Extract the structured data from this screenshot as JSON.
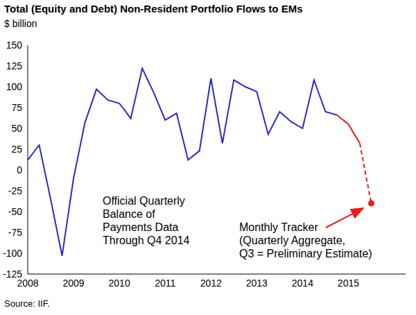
{
  "chart_data": {
    "type": "line",
    "title": "Total (Equity and Debt) Non-Resident Portfolio Flows to EMs",
    "y_label": "$ billion",
    "x": [
      2008,
      2008.25,
      2008.5,
      2008.75,
      2009,
      2009.25,
      2009.5,
      2009.75,
      2010,
      2010.25,
      2010.5,
      2010.75,
      2011,
      2011.25,
      2011.5,
      2011.75,
      2012,
      2012.25,
      2012.5,
      2012.75,
      2013,
      2013.25,
      2013.5,
      2013.75,
      2014,
      2014.25,
      2014.5,
      2014.75,
      2015,
      2015.25,
      2015.5
    ],
    "series": [
      {
        "type": "line",
        "color": "#2a2ac4",
        "line_style": "solid",
        "marker": "none",
        "values": [
          12,
          30,
          -35,
          -103,
          -10,
          57,
          97,
          84,
          80,
          62,
          122,
          93,
          60,
          68,
          12,
          23,
          110,
          32,
          108,
          100,
          94,
          43,
          70,
          58,
          50,
          108,
          70,
          66,
          null,
          null,
          null
        ]
      },
      {
        "type": "line",
        "color": "#e0201c",
        "line_style": "solid",
        "marker": "none",
        "values": [
          null,
          null,
          null,
          null,
          null,
          null,
          null,
          null,
          null,
          null,
          null,
          null,
          null,
          null,
          null,
          null,
          null,
          null,
          null,
          null,
          null,
          null,
          null,
          null,
          null,
          null,
          null,
          66,
          55,
          32,
          null
        ]
      },
      {
        "type": "line",
        "color": "#e0201c",
        "line_style": "dashed",
        "marker": "none",
        "values": [
          null,
          null,
          null,
          null,
          null,
          null,
          null,
          null,
          null,
          null,
          null,
          null,
          null,
          null,
          null,
          null,
          null,
          null,
          null,
          null,
          null,
          null,
          null,
          null,
          null,
          null,
          null,
          null,
          null,
          32,
          -40
        ]
      },
      {
        "type": "scatter",
        "color": "#e0201c",
        "line_style": "none",
        "marker": "circle",
        "values": [
          null,
          null,
          null,
          null,
          null,
          null,
          null,
          null,
          null,
          null,
          null,
          null,
          null,
          null,
          null,
          null,
          null,
          null,
          null,
          null,
          null,
          null,
          null,
          null,
          null,
          null,
          null,
          null,
          null,
          null,
          -40
        ]
      }
    ],
    "xlim": [
      2008,
      2016.25
    ],
    "xticks": [
      2008,
      2009,
      2010,
      2011,
      2012,
      2013,
      2014,
      2015
    ],
    "ylim": [
      -125,
      150
    ],
    "yticks": [
      -125,
      -100,
      -75,
      -50,
      -25,
      0,
      25,
      50,
      75,
      100,
      125,
      150
    ],
    "grid": false,
    "annotations": [
      {
        "text": "Official Quarterly\nBalance of\nPayments Data\nThrough Q4 2014"
      },
      {
        "text": "Monthly Tracker\n(Quarterly Aggregate,\nQ3 = Preliminary Estimate)"
      },
      {
        "text": "Source: IIF."
      }
    ]
  }
}
